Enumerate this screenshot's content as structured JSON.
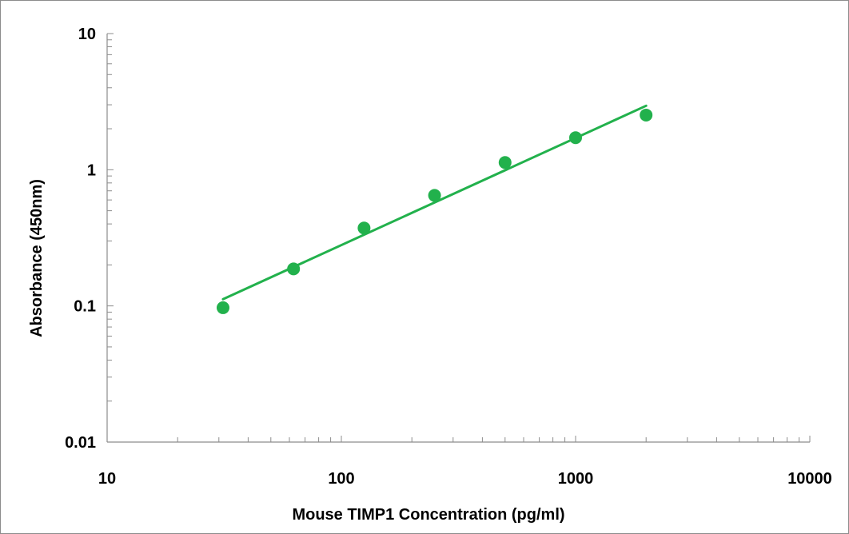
{
  "chart_data": {
    "type": "scatter",
    "title": "",
    "xlabel": "Mouse TIMP1  Concentration (pg/ml)",
    "ylabel": "Absorbance (450nm)",
    "x_scale": "log",
    "y_scale": "log",
    "xlim": [
      10,
      10000
    ],
    "ylim": [
      0.01,
      10
    ],
    "x_ticks": [
      {
        "value": 10,
        "label": "10"
      },
      {
        "value": 100,
        "label": "100"
      },
      {
        "value": 1000,
        "label": "1000"
      },
      {
        "value": 10000,
        "label": "10000"
      }
    ],
    "y_ticks": [
      {
        "value": 0.01,
        "label": "0.01"
      },
      {
        "value": 0.1,
        "label": "0.1"
      },
      {
        "value": 1,
        "label": "1"
      },
      {
        "value": 10,
        "label": "10"
      }
    ],
    "grid": false,
    "legend": "none",
    "marker_color": "#22b14c",
    "series": [
      {
        "x": [
          31.25,
          62.5,
          125,
          250,
          500,
          1000,
          2000
        ],
        "y": [
          0.097,
          0.187,
          0.373,
          0.648,
          1.13,
          1.72,
          2.52
        ]
      }
    ],
    "trendline": {
      "type": "power",
      "color": "#22b14c",
      "x": [
        31.25,
        2000
      ],
      "y": [
        0.112,
        2.95
      ]
    }
  }
}
